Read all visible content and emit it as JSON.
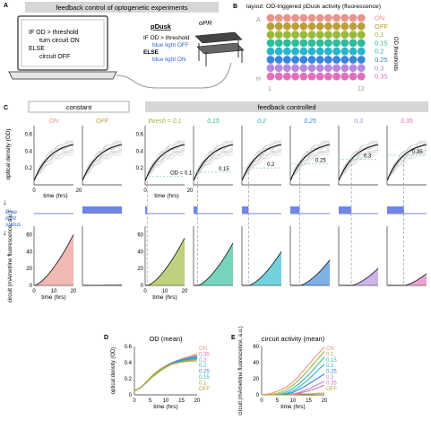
{
  "panelA": {
    "letter": "A",
    "banner": "feedback control of optogenetic experiments",
    "code": [
      "IF OD > threshold",
      "turn circuit ON",
      "ELSE",
      "circuit OFF"
    ]
  },
  "pdusk": {
    "title": "pDusk",
    "lines": [
      "IF OD > threshold",
      "blue light OFF",
      "ELSE",
      "blue light ON"
    ],
    "device": "oPR"
  },
  "panelB": {
    "letter": "B",
    "title": "layout: OD-triggered pDusk activity (fluorescence)",
    "row_top": "A",
    "row_bottom": "H",
    "col_left": "1",
    "col_right": "12",
    "side_label": "OD thresholds",
    "legend": [
      {
        "label": "ON",
        "color": "#e8938a"
      },
      {
        "label": "OFF",
        "color": "#b8a03a"
      },
      {
        "label": "0.1",
        "color": "#9ab83a"
      },
      {
        "label": "0.15",
        "color": "#2ebc9a"
      },
      {
        "label": "0.2",
        "color": "#28b7c9"
      },
      {
        "label": "0.25",
        "color": "#3a86d9"
      },
      {
        "label": "0.3",
        "color": "#b38ae0"
      },
      {
        "label": "0.35",
        "color": "#e070b8"
      }
    ]
  },
  "panelC": {
    "letter": "C",
    "header_constant": "constant",
    "header_feedback": "feedback controlled",
    "ylabel_top": "optical density (OD)",
    "ylabel_bottom": "circuit (mAmetrine fluorescence, a.u.)",
    "blue_status": [
      "Blue",
      "light",
      "status"
    ],
    "xlabel": "time (hrs)",
    "x_ticks": [
      "0",
      "20"
    ],
    "y_ticks_top": [
      "0.6",
      "0.4",
      "0.2"
    ],
    "y_ticks_bottom": [
      "60",
      "40",
      "20",
      "0"
    ],
    "x_ticks_bottom": [
      "0",
      "10",
      "20"
    ],
    "conditions": [
      {
        "title": "ON",
        "color": "#e8938a",
        "threshold": null,
        "light": "on"
      },
      {
        "title": "OFF",
        "color": "#b8a03a",
        "threshold": null,
        "light": "off"
      },
      {
        "title": "thresh = 0.1",
        "color": "#9ab83a",
        "threshold": 0.1,
        "label": "OD = 0.1",
        "light": "fb"
      },
      {
        "title": "0.15",
        "color": "#2ebc9a",
        "threshold": 0.15,
        "label": "0.15",
        "light": "fb"
      },
      {
        "title": "0.2",
        "color": "#28b7c9",
        "threshold": 0.2,
        "label": "0.2",
        "light": "fb"
      },
      {
        "title": "0.25",
        "color": "#3a86d9",
        "threshold": 0.25,
        "label": "0.25",
        "light": "fb"
      },
      {
        "title": "0.3",
        "color": "#b38ae0",
        "threshold": 0.3,
        "label": "0.3",
        "light": "fb"
      },
      {
        "title": "0.35",
        "color": "#e070b8",
        "threshold": 0.35,
        "label": "0.35",
        "light": "fb"
      }
    ]
  },
  "chart_data": [
    {
      "type": "line",
      "letter": "D",
      "title": "OD (mean)",
      "xlabel": "time (hrs)",
      "ylabel": "optical density (OD)",
      "xlim": [
        0,
        20
      ],
      "ylim": [
        0,
        0.6
      ],
      "x_ticks": [
        "0",
        "5",
        "10",
        "15",
        "20"
      ],
      "y_ticks": [
        "0",
        "0.2",
        "0.4",
        "0.6"
      ],
      "x": [
        0,
        2,
        4,
        6,
        8,
        10,
        12,
        14,
        16,
        18,
        20
      ],
      "series": [
        {
          "name": "ON",
          "color": "#e8938a",
          "values": [
            0.05,
            0.09,
            0.16,
            0.24,
            0.31,
            0.36,
            0.4,
            0.43,
            0.46,
            0.48,
            0.51
          ]
        },
        {
          "name": "0.35",
          "color": "#e070b8",
          "values": [
            0.05,
            0.09,
            0.16,
            0.24,
            0.31,
            0.36,
            0.4,
            0.43,
            0.45,
            0.47,
            0.49
          ]
        },
        {
          "name": "0.3",
          "color": "#b38ae0",
          "values": [
            0.05,
            0.09,
            0.16,
            0.24,
            0.31,
            0.36,
            0.4,
            0.43,
            0.45,
            0.47,
            0.48
          ]
        },
        {
          "name": "0.2",
          "color": "#28b7c9",
          "values": [
            0.05,
            0.09,
            0.16,
            0.24,
            0.3,
            0.35,
            0.39,
            0.42,
            0.44,
            0.46,
            0.47
          ]
        },
        {
          "name": "0.25",
          "color": "#3a86d9",
          "values": [
            0.05,
            0.09,
            0.16,
            0.24,
            0.3,
            0.35,
            0.39,
            0.42,
            0.44,
            0.45,
            0.46
          ]
        },
        {
          "name": "0.15",
          "color": "#2ebc9a",
          "values": [
            0.05,
            0.09,
            0.16,
            0.24,
            0.3,
            0.35,
            0.39,
            0.41,
            0.43,
            0.44,
            0.45
          ]
        },
        {
          "name": "0.1",
          "color": "#9ab83a",
          "values": [
            0.05,
            0.09,
            0.16,
            0.23,
            0.29,
            0.34,
            0.38,
            0.4,
            0.42,
            0.43,
            0.44
          ]
        },
        {
          "name": "OFF",
          "color": "#b8a03a",
          "values": [
            0.05,
            0.09,
            0.17,
            0.25,
            0.31,
            0.35,
            0.38,
            0.4,
            0.41,
            0.42,
            0.42
          ]
        }
      ]
    },
    {
      "type": "line",
      "letter": "E",
      "title": "circuit activity (mean)",
      "xlabel": "time (hrs)",
      "ylabel": "circuit (mAmetrine fluorescence, a.u.)",
      "xlim": [
        0,
        20
      ],
      "ylim": [
        0,
        60
      ],
      "x_ticks": [
        "0",
        "5",
        "10",
        "15",
        "20"
      ],
      "y_ticks": [
        "0",
        "20",
        "40",
        "60"
      ],
      "x": [
        0,
        2,
        4,
        6,
        8,
        10,
        12,
        14,
        16,
        18,
        20
      ],
      "series": [
        {
          "name": "ON",
          "color": "#e8938a",
          "values": [
            0,
            1,
            3,
            6,
            10,
            16,
            24,
            33,
            42,
            51,
            59
          ]
        },
        {
          "name": "0.1",
          "color": "#9ab83a",
          "values": [
            0,
            0,
            1,
            3,
            7,
            12,
            19,
            27,
            36,
            45,
            54
          ]
        },
        {
          "name": "0.15",
          "color": "#2ebc9a",
          "values": [
            0,
            0,
            0,
            1,
            4,
            8,
            14,
            21,
            29,
            38,
            47
          ]
        },
        {
          "name": "0.2",
          "color": "#28b7c9",
          "values": [
            0,
            0,
            0,
            0,
            2,
            5,
            10,
            16,
            23,
            31,
            38
          ]
        },
        {
          "name": "0.25",
          "color": "#3a86d9",
          "values": [
            0,
            0,
            0,
            0,
            1,
            3,
            7,
            11,
            16,
            21,
            26
          ]
        },
        {
          "name": "0.3",
          "color": "#b38ae0",
          "values": [
            0,
            0,
            0,
            0,
            0,
            1,
            3,
            6,
            9,
            13,
            17
          ]
        },
        {
          "name": "0.35",
          "color": "#e070b8",
          "values": [
            0,
            0,
            0,
            0,
            0,
            1,
            2,
            4,
            6,
            9,
            12
          ]
        },
        {
          "name": "OFF",
          "color": "#b8a03a",
          "values": [
            0,
            0,
            0,
            0,
            0,
            0,
            1,
            1,
            1,
            2,
            2
          ]
        }
      ]
    }
  ]
}
